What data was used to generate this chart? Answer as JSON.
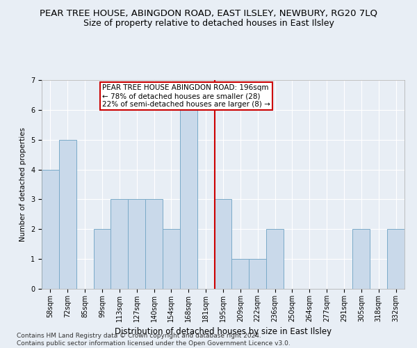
{
  "title": "PEAR TREE HOUSE, ABINGDON ROAD, EAST ILSLEY, NEWBURY, RG20 7LQ",
  "subtitle": "Size of property relative to detached houses in East Ilsley",
  "xlabel": "Distribution of detached houses by size in East Ilsley",
  "ylabel": "Number of detached properties",
  "bin_labels": [
    "58sqm",
    "72sqm",
    "85sqm",
    "99sqm",
    "113sqm",
    "127sqm",
    "140sqm",
    "154sqm",
    "168sqm",
    "181sqm",
    "195sqm",
    "209sqm",
    "222sqm",
    "236sqm",
    "250sqm",
    "264sqm",
    "277sqm",
    "291sqm",
    "305sqm",
    "318sqm",
    "332sqm"
  ],
  "bar_values": [
    4,
    5,
    0,
    2,
    3,
    3,
    3,
    2,
    6,
    0,
    3,
    1,
    1,
    2,
    0,
    0,
    0,
    0,
    2,
    0,
    2
  ],
  "bar_color": "#c9d9ea",
  "bar_edge_color": "#7aaac8",
  "marker_label_line1": "PEAR TREE HOUSE ABINGDON ROAD: 196sqm",
  "marker_label_line2": "← 78% of detached houses are smaller (28)",
  "marker_label_line3": "22% of semi-detached houses are larger (8) →",
  "vline_index": 10,
  "vline_color": "#cc0000",
  "ylim": [
    0,
    7
  ],
  "yticks": [
    0,
    1,
    2,
    3,
    4,
    5,
    6,
    7
  ],
  "footer": "Contains HM Land Registry data © Crown copyright and database right 2024.\nContains public sector information licensed under the Open Government Licence v3.0.",
  "background_color": "#e8eef5",
  "plot_bg_color": "#e8eef5",
  "grid_color": "#ffffff",
  "title_fontsize": 9.5,
  "subtitle_fontsize": 9,
  "xlabel_fontsize": 8.5,
  "ylabel_fontsize": 7.5,
  "tick_fontsize": 7,
  "footer_fontsize": 6.5,
  "annot_fontsize": 7.5
}
